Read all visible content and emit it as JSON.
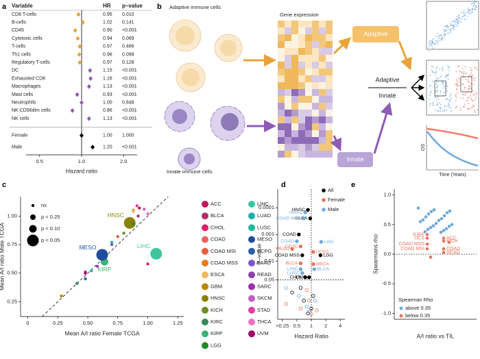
{
  "panel_labels": [
    "a",
    "b",
    "c",
    "d",
    "e"
  ],
  "diagram": {
    "title_left": "Adaptive immune cells",
    "title_mid": "Gene expression",
    "box_adaptive": "Adaptive",
    "box_innate": "Innate",
    "bottom_left": "Innate immune cells",
    "center_adaptive": "Adaptive",
    "center_innate": "Innate",
    "km_ylabel": "OS",
    "km_xlabel": "Time (Years)"
  },
  "chart_data": [
    {
      "type": "forest",
      "columns": [
        "Variable",
        "HR",
        "p–value"
      ],
      "categories": [
        "CD8 T-cells",
        "B-cells",
        "CD45",
        "Cytotoxic cells",
        "T-cells",
        "Th1 cells",
        "Regulatory T-cells",
        "DC",
        "Exhausted CD8",
        "Macrophages",
        "Mast cells",
        "Neutrophils",
        "NK CD56dim cells",
        "NK cells",
        "Female",
        "Male"
      ],
      "values": [
        0.95,
        1.02,
        0.9,
        0.94,
        0.97,
        0.96,
        0.97,
        1.15,
        1.16,
        1.13,
        0.93,
        1,
        0.86,
        1.13,
        1,
        1.2
      ],
      "value_labels": [
        "0.95",
        "1.02",
        "0.90",
        "0.94",
        "0.97",
        "0.96",
        "0.97",
        "1.15",
        "1.16",
        "1.13",
        "0.93",
        "1.00",
        "0.86",
        "1.13",
        "1.00",
        "1.20"
      ],
      "p_values": [
        "0.010",
        "0.141",
        "<0.001",
        "0.069",
        "0.466",
        "0.098",
        "0.128",
        "<0.001",
        "<0.001",
        "<0.001",
        "<0.001",
        "0.848",
        "<0.001",
        "<0.001",
        "1.000",
        "<0.001"
      ],
      "colors": [
        "#e8a33a",
        "#e8a33a",
        "#e8a33a",
        "#e8a33a",
        "#e8a33a",
        "#e8a33a",
        "#e8a33a",
        "#8e5bb5",
        "#8e5bb5",
        "#8e5bb5",
        "#8e5bb5",
        "#8e5bb5",
        "#8e5bb5",
        "#8e5bb5",
        "#000000",
        "#000000"
      ],
      "xlabel": "Hazard ratio",
      "log_scale": true,
      "xlim": [
        0.4,
        2.5
      ],
      "xticks": [
        0.5,
        {
          "value": 1,
          "label": "1.0"
        },
        {
          "value": 2,
          "label": "2.0"
        }
      ],
      "reference_line": 1
    },
    {
      "type": "scatter",
      "xlabel": "Mean A/I ratio Female TCGA",
      "ylabel": "Mean A/I ratio Male TCGA",
      "xlim": [
        -0.06,
        1.3
      ],
      "ylim": [
        0.12,
        1.17
      ],
      "xticks": [
        0,
        0.25,
        {
          "value": 0.5,
          "label": "0.50"
        },
        0.75,
        {
          "value": 1,
          "label": "1.00"
        },
        1.25
      ],
      "yticks": [
        0.25,
        {
          "value": 0.5,
          "label": "0.50"
        },
        0.75,
        {
          "value": 1,
          "label": "1.00"
        }
      ],
      "size_legend": [
        "ns",
        "p < 0.25",
        "p < 0.10",
        "p < 0.05"
      ],
      "categories": [
        "ACC",
        "BLCA",
        "CHOL",
        "COAD",
        "COAD MSI",
        "COAD MSS",
        "ESCA",
        "GBM",
        "HNSC",
        "KICH",
        "KIRC",
        "KIRP",
        "LGG",
        "LIHC",
        "LUAD",
        "LUSC",
        "MESO",
        "PCPG",
        "PAAD",
        "READ",
        "SARC",
        "SKCM",
        "STAD",
        "THCA",
        "UVM"
      ],
      "x": [
        0.93,
        0.92,
        1.0,
        0.62,
        0.75,
        0.88,
        0.88,
        0.28,
        0.85,
        0.8,
        0.41,
        0.64,
        0.88,
        1.07,
        0.53,
        0.7,
        0.62,
        0.48,
        0.7,
        0.58,
        0.48,
        0.97,
        0.91,
        1.0,
        0.48
      ],
      "values": [
        1.07,
        1.0,
        0.58,
        0.62,
        0.82,
        1.05,
        1.04,
        0.3,
        0.94,
        0.85,
        0.41,
        0.6,
        0.93,
        0.67,
        0.52,
        0.77,
        0.66,
        0.45,
        0.75,
        0.56,
        0.51,
        1.06,
        1.09,
        1.02,
        0.5
      ],
      "significance": [
        "ns",
        "ns",
        "ns",
        "ns",
        "ns",
        "ns",
        "ns",
        "ns",
        "p < 0.05",
        "ns",
        "ns",
        "p < 0.10",
        "ns",
        "p < 0.05",
        "ns",
        "ns",
        "p < 0.05",
        "ns",
        "ns",
        "ns",
        "ns",
        "ns",
        "ns",
        "ns",
        "ns"
      ],
      "colors": [
        "#c2185b",
        "#b0306a",
        "#e91e63",
        "#f06060",
        "#e85c3c",
        "#e67e22",
        "#f4b860",
        "#b8860b",
        "#8b8000",
        "#6b8e23",
        "#2e8b57",
        "#3cb371",
        "#228b22",
        "#3cc6a0",
        "#20b2aa",
        "#1abc9c",
        "#1f4e9e",
        "#2e5fa8",
        "#7e57c2",
        "#8e44ad",
        "#9b30a8",
        "#c060c0",
        "#e040a0",
        "#f070c0",
        "#a0006a"
      ]
    },
    {
      "type": "volcano",
      "xlabel": "Hazard Ratio",
      "ylabel": "P–value",
      "log_scale": true,
      "xlim": [
        0.2,
        5
      ],
      "ylim": [
        1.5,
        2e-05
      ],
      "xticks": [
        {
          "value": 0.25,
          "label": "<0.25"
        },
        0.5,
        1,
        2,
        4
      ],
      "yticks": [
        0.0001,
        0.001,
        0.01,
        0.05
      ],
      "reference_lines": {
        "x": 1,
        "y": 0.05
      },
      "series": [
        {
          "name": "All",
          "color": "#000000",
          "x": [
            0.85,
            0.95,
            0.55,
            0.65,
            1.55,
            0.75,
            0.9,
            0.4,
            0.7,
            1.0,
            0.85,
            1.1,
            0.6
          ],
          "values": [
            0.00012,
            0.00025,
            0.001,
            0.006,
            0.006,
            0.04,
            0.04,
            0.15,
            0.3,
            0.6,
            0.9,
            0.2,
            0.1
          ],
          "labels": [
            "HNSC",
            "BLCA",
            "COAD",
            "COAD MSS",
            "LGG",
            "CHOL",
            "LIHC",
            null,
            null,
            null,
            null,
            null,
            null
          ]
        },
        {
          "name": "Female",
          "color": "#e8735a",
          "x": [
            0.4,
            0.6,
            1.1,
            0.6,
            1.1,
            0.3,
            0.6,
            0.9,
            1.3,
            1.0,
            0.8
          ],
          "values": [
            0.0035,
            0.0028,
            0.0045,
            0.012,
            0.013,
            0.4,
            0.6,
            0.3,
            0.7,
            0.95,
            0.12
          ],
          "labels": [
            "MESO",
            "CESC",
            "UCEC",
            "BLCA",
            "BRCA",
            null,
            null,
            null,
            null,
            null,
            null
          ]
        },
        {
          "name": "Male",
          "color": "#6fa8dc",
          "x": [
            0.75,
            0.7,
            0.5,
            1.6,
            0.6,
            1.15,
            0.65,
            0.3,
            0.55,
            0.8,
            1.2,
            0.9
          ],
          "values": [
            0.00015,
            0.00025,
            0.0018,
            0.0019,
            0.02,
            0.02,
            0.028,
            0.1,
            0.2,
            0.5,
            0.3,
            0.8
          ],
          "labels": [
            "HNSC",
            "COAD MSS",
            "COAD",
            "LGG",
            "LIHC",
            "BLCA",
            "LUSC",
            null,
            null,
            null,
            null,
            null
          ]
        }
      ]
    },
    {
      "type": "strip",
      "xlabel": "A/I ratio vs TIL",
      "ylabel": "Spearmans rho",
      "legend_title": "Spearman Rho",
      "ylim": [
        -1.1,
        1.1
      ],
      "yticks": [
        {
          "value": -1,
          "label": "-1.0"
        },
        -0.5,
        {
          "value": 0,
          "label": "0.0"
        },
        0.5,
        {
          "value": 1,
          "label": "1.0"
        }
      ],
      "reference_line": 0,
      "series": [
        {
          "name": "above 0.35",
          "color": "#6fa8dc",
          "values": [
            0.78,
            0.75,
            0.73,
            0.72,
            0.7,
            0.68,
            0.65,
            0.63,
            0.6,
            0.58,
            0.57,
            0.55,
            0.52,
            0.5,
            0.48,
            0.47,
            0.45,
            0.43,
            0.42,
            0.4,
            0.38,
            0.37
          ],
          "labels": [
            null,
            null,
            null,
            null,
            null,
            null,
            null,
            null,
            null,
            null,
            null,
            null,
            null,
            null,
            null,
            null,
            null,
            null,
            null,
            null,
            null,
            null
          ]
        },
        {
          "name": "below 0.35",
          "color": "#e8735a",
          "values": [
            0.33,
            0.27,
            0.27,
            0.22,
            0.17,
            0.09,
            0.09,
            0.03,
            0.2,
            -0.05
          ],
          "labels": [
            "KIRP",
            "ACC",
            "UCS",
            "KICH",
            "COAD MSS",
            "COAD",
            "COAD MSI",
            "READ",
            null,
            null
          ]
        }
      ]
    }
  ]
}
